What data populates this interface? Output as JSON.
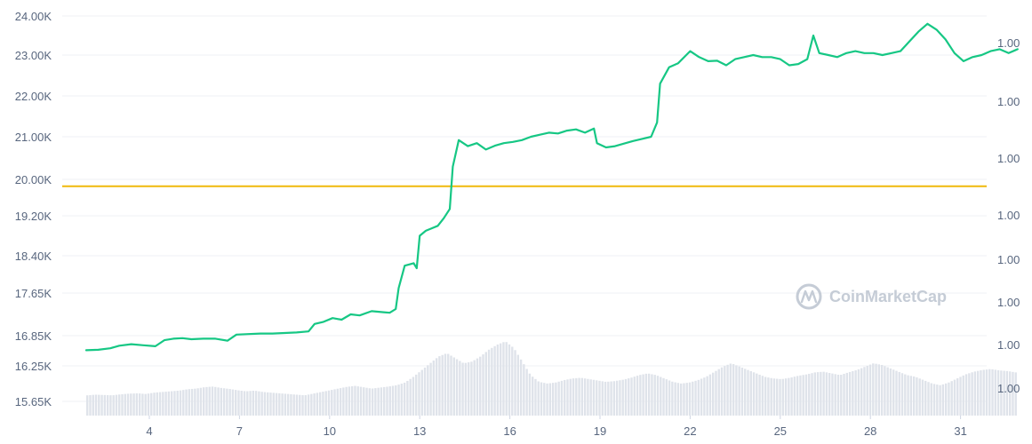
{
  "chart_data": {
    "type": "line",
    "watermark": "CoinMarketCap",
    "colors": {
      "price_line": "#16c784",
      "reference_line": "#f0b90b",
      "volume_bar": "#dfe3ea",
      "grid": "#eff2f5",
      "tick_text": "#58667e"
    },
    "y_left_ticks": [
      {
        "label": "24.00K",
        "value": 24000
      },
      {
        "label": "23.00K",
        "value": 23000
      },
      {
        "label": "22.00K",
        "value": 22000
      },
      {
        "label": "21.00K",
        "value": 21000
      },
      {
        "label": "20.00K",
        "value": 20000
      },
      {
        "label": "19.20K",
        "value": 19200
      },
      {
        "label": "18.40K",
        "value": 18400
      },
      {
        "label": "17.65K",
        "value": 17650
      },
      {
        "label": "16.85K",
        "value": 16850
      },
      {
        "label": "16.25K",
        "value": 16250
      },
      {
        "label": "15.65K",
        "value": 15650
      }
    ],
    "y_right_ticks": [
      "1.00",
      "1.00",
      "1.00",
      "1.00",
      "1.00",
      "1.00",
      "1.00",
      "1.00",
      "1.00"
    ],
    "x_ticks": [
      {
        "label": "4",
        "day": 4
      },
      {
        "label": "7",
        "day": 7
      },
      {
        "label": "10",
        "day": 10
      },
      {
        "label": "13",
        "day": 13
      },
      {
        "label": "16",
        "day": 16
      },
      {
        "label": "19",
        "day": 19
      },
      {
        "label": "22",
        "day": 22
      },
      {
        "label": "25",
        "day": 25
      },
      {
        "label": "28",
        "day": 28
      },
      {
        "label": "31",
        "day": 31
      }
    ],
    "x_range": [
      1.9,
      32.9
    ],
    "reference_value": 19850,
    "series": [
      {
        "values": [
          [
            1.9,
            16560
          ],
          [
            2.3,
            16570
          ],
          [
            2.7,
            16600
          ],
          [
            3.0,
            16650
          ],
          [
            3.4,
            16680
          ],
          [
            3.8,
            16660
          ],
          [
            4.2,
            16640
          ],
          [
            4.5,
            16760
          ],
          [
            4.8,
            16790
          ],
          [
            5.1,
            16800
          ],
          [
            5.4,
            16780
          ],
          [
            5.8,
            16790
          ],
          [
            6.2,
            16790
          ],
          [
            6.6,
            16750
          ],
          [
            6.9,
            16870
          ],
          [
            7.3,
            16880
          ],
          [
            7.7,
            16890
          ],
          [
            8.1,
            16890
          ],
          [
            8.5,
            16900
          ],
          [
            8.9,
            16910
          ],
          [
            9.3,
            16930
          ],
          [
            9.5,
            17070
          ],
          [
            9.8,
            17110
          ],
          [
            10.1,
            17180
          ],
          [
            10.4,
            17150
          ],
          [
            10.7,
            17250
          ],
          [
            11.0,
            17230
          ],
          [
            11.4,
            17310
          ],
          [
            11.8,
            17290
          ],
          [
            12.0,
            17280
          ],
          [
            12.2,
            17350
          ],
          [
            12.3,
            17750
          ],
          [
            12.5,
            18200
          ],
          [
            12.8,
            18250
          ],
          [
            12.9,
            18150
          ],
          [
            13.0,
            18800
          ],
          [
            13.2,
            18900
          ],
          [
            13.4,
            18950
          ],
          [
            13.6,
            19000
          ],
          [
            13.8,
            19150
          ],
          [
            14.0,
            19350
          ],
          [
            14.1,
            20300
          ],
          [
            14.3,
            20920
          ],
          [
            14.6,
            20780
          ],
          [
            14.9,
            20850
          ],
          [
            15.2,
            20700
          ],
          [
            15.5,
            20790
          ],
          [
            15.8,
            20850
          ],
          [
            16.1,
            20880
          ],
          [
            16.4,
            20920
          ],
          [
            16.7,
            21000
          ],
          [
            17.0,
            21050
          ],
          [
            17.3,
            21100
          ],
          [
            17.6,
            21080
          ],
          [
            17.9,
            21150
          ],
          [
            18.2,
            21180
          ],
          [
            18.5,
            21100
          ],
          [
            18.8,
            21200
          ],
          [
            18.9,
            20850
          ],
          [
            19.2,
            20750
          ],
          [
            19.5,
            20780
          ],
          [
            19.8,
            20840
          ],
          [
            20.1,
            20900
          ],
          [
            20.4,
            20950
          ],
          [
            20.7,
            21000
          ],
          [
            20.9,
            21350
          ],
          [
            21.0,
            22300
          ],
          [
            21.3,
            22700
          ],
          [
            21.6,
            22800
          ],
          [
            22.0,
            23100
          ],
          [
            22.3,
            22950
          ],
          [
            22.6,
            22850
          ],
          [
            22.9,
            22860
          ],
          [
            23.2,
            22750
          ],
          [
            23.5,
            22900
          ],
          [
            23.8,
            22950
          ],
          [
            24.1,
            23000
          ],
          [
            24.4,
            22950
          ],
          [
            24.7,
            22950
          ],
          [
            25.0,
            22900
          ],
          [
            25.3,
            22750
          ],
          [
            25.6,
            22780
          ],
          [
            25.9,
            22900
          ],
          [
            26.1,
            23500
          ],
          [
            26.3,
            23050
          ],
          [
            26.6,
            23000
          ],
          [
            26.9,
            22950
          ],
          [
            27.2,
            23050
          ],
          [
            27.5,
            23100
          ],
          [
            27.8,
            23050
          ],
          [
            28.1,
            23050
          ],
          [
            28.4,
            23000
          ],
          [
            28.7,
            23050
          ],
          [
            29.0,
            23100
          ],
          [
            29.3,
            23350
          ],
          [
            29.6,
            23600
          ],
          [
            29.9,
            23800
          ],
          [
            30.2,
            23650
          ],
          [
            30.5,
            23400
          ],
          [
            30.8,
            23050
          ],
          [
            31.1,
            22850
          ],
          [
            31.4,
            22950
          ],
          [
            31.7,
            23000
          ],
          [
            32.0,
            23100
          ],
          [
            32.3,
            23150
          ],
          [
            32.6,
            23050
          ],
          [
            32.9,
            23150
          ]
        ]
      }
    ],
    "volume_relative": [
      0.6,
      0.62,
      0.61,
      0.6,
      0.63,
      0.65,
      0.66,
      0.64,
      0.68,
      0.7,
      0.72,
      0.74,
      0.78,
      0.8,
      0.84,
      0.86,
      0.82,
      0.79,
      0.75,
      0.72,
      0.74,
      0.7,
      0.68,
      0.66,
      0.64,
      0.62,
      0.6,
      0.65,
      0.7,
      0.75,
      0.8,
      0.85,
      0.88,
      0.84,
      0.8,
      0.83,
      0.86,
      0.9,
      0.98,
      1.15,
      1.35,
      1.55,
      1.75,
      1.85,
      1.7,
      1.55,
      1.6,
      1.75,
      1.95,
      2.1,
      2.2,
      2.0,
      1.6,
      1.2,
      1.0,
      0.95,
      0.98,
      1.05,
      1.1,
      1.12,
      1.08,
      1.04,
      1.0,
      1.02,
      1.06,
      1.12,
      1.2,
      1.25,
      1.2,
      1.1,
      1.0,
      0.95,
      0.98,
      1.05,
      1.15,
      1.3,
      1.45,
      1.55,
      1.45,
      1.35,
      1.25,
      1.15,
      1.1,
      1.08,
      1.12,
      1.18,
      1.22,
      1.28,
      1.3,
      1.25,
      1.2,
      1.28,
      1.35,
      1.45,
      1.55,
      1.5,
      1.4,
      1.3,
      1.2,
      1.15,
      1.05,
      0.95,
      0.9,
      0.98,
      1.1,
      1.22,
      1.3,
      1.35,
      1.38,
      1.34,
      1.32,
      1.28
    ]
  }
}
